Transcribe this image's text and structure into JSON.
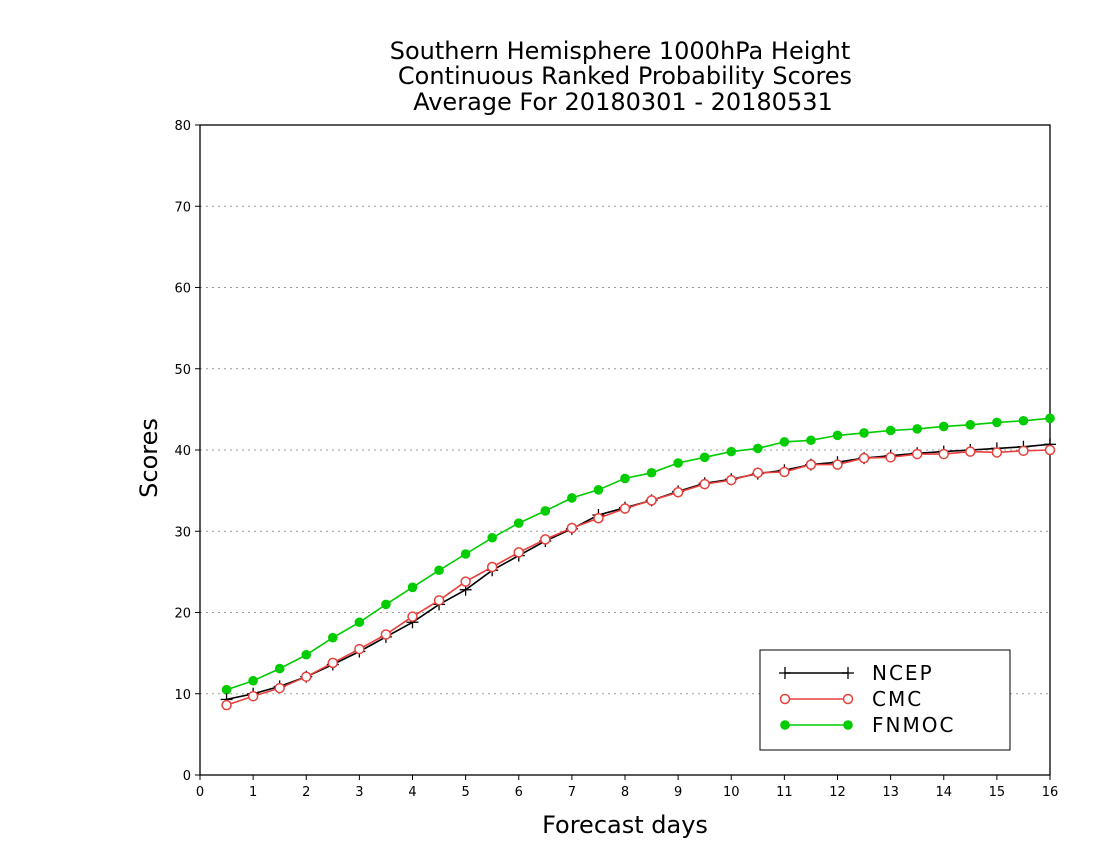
{
  "chart_data": {
    "type": "line",
    "title": [
      "Southern Hemisphere 1000hPa Height",
      "Continuous Ranked Probability Scores",
      "Average For 20180301 - 20180531"
    ],
    "xlabel": "Forecast days",
    "ylabel": "Scores",
    "xlim": [
      0,
      16
    ],
    "ylim": [
      0,
      80
    ],
    "xticks": [
      "0",
      "1",
      "2",
      "3",
      "4",
      "5",
      "6",
      "7",
      "8",
      "9",
      "10",
      "11",
      "12",
      "13",
      "14",
      "15",
      "16"
    ],
    "yticks": [
      "0",
      "10",
      "20",
      "30",
      "40",
      "50",
      "60",
      "70",
      "80"
    ],
    "grid": "horizontal dotted",
    "legend_position": "bottom-right",
    "x": [
      0.5,
      1,
      1.5,
      2,
      2.5,
      3,
      3.5,
      4,
      4.5,
      5,
      5.5,
      6,
      6.5,
      7,
      7.5,
      8,
      8.5,
      9,
      9.5,
      10,
      10.5,
      11,
      11.5,
      12,
      12.5,
      13,
      13.5,
      14,
      14.5,
      15,
      15.5,
      16
    ],
    "series": [
      {
        "name": "NCEP",
        "color": "#000000",
        "marker": "plus",
        "values": [
          9.3,
          10.0,
          10.9,
          12.1,
          13.6,
          15.2,
          17.0,
          18.8,
          21.0,
          22.8,
          25.2,
          27.0,
          28.8,
          30.3,
          32.0,
          32.9,
          33.8,
          34.9,
          35.9,
          36.4,
          37.1,
          37.5,
          38.2,
          38.5,
          39.0,
          39.3,
          39.6,
          39.8,
          40.0,
          40.2,
          40.4,
          40.7
        ]
      },
      {
        "name": "CMC",
        "color": "#e8403c",
        "marker": "open-circle",
        "values": [
          8.6,
          9.7,
          10.7,
          12.1,
          13.8,
          15.5,
          17.3,
          19.5,
          21.5,
          23.8,
          25.6,
          27.4,
          29.0,
          30.4,
          31.6,
          32.8,
          33.8,
          34.8,
          35.8,
          36.3,
          37.2,
          37.3,
          38.2,
          38.2,
          39.0,
          39.1,
          39.5,
          39.5,
          39.8,
          39.7,
          39.9,
          40.0
        ]
      },
      {
        "name": "FNMOC",
        "color": "#00cc00",
        "marker": "filled-circle",
        "values": [
          10.5,
          11.6,
          13.1,
          14.8,
          16.9,
          18.8,
          21.0,
          23.1,
          25.2,
          27.2,
          29.2,
          31.0,
          32.5,
          34.1,
          35.1,
          36.5,
          37.2,
          38.4,
          39.1,
          39.8,
          40.2,
          41.0,
          41.2,
          41.8,
          42.1,
          42.4,
          42.6,
          42.9,
          43.1,
          43.4,
          43.6,
          43.9
        ]
      }
    ]
  }
}
